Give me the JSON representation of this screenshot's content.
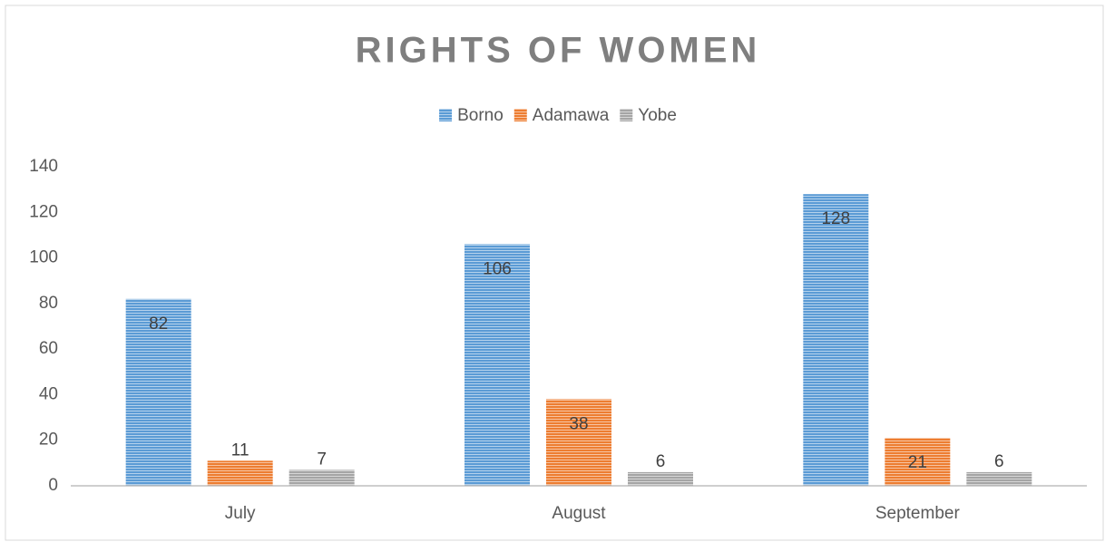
{
  "chart_data": {
    "type": "bar",
    "title": "RIGHTS OF WOMEN",
    "categories": [
      "July",
      "August",
      "September"
    ],
    "series": [
      {
        "name": "Borno",
        "color": "#5b9bd5",
        "values": [
          82,
          106,
          128
        ]
      },
      {
        "name": "Adamawa",
        "color": "#ed7d31",
        "values": [
          11,
          38,
          21
        ]
      },
      {
        "name": "Yobe",
        "color": "#a5a5a5",
        "values": [
          7,
          6,
          6
        ]
      }
    ],
    "ylim": [
      0,
      140
    ],
    "yticks": [
      0,
      20,
      40,
      60,
      80,
      100,
      120,
      140
    ],
    "grid": false,
    "legend": "top"
  }
}
